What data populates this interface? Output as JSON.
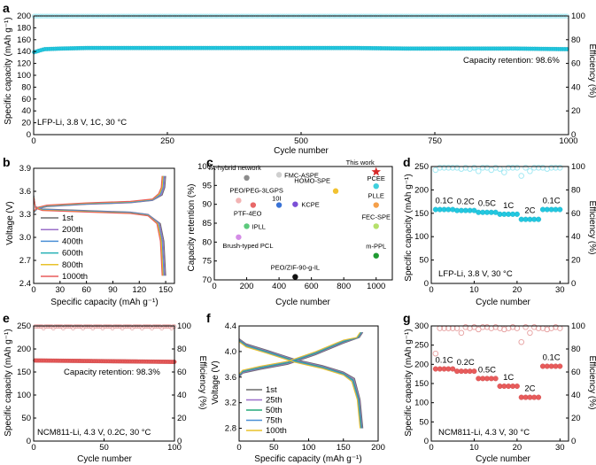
{
  "colors": {
    "cyan": "#22c8e0",
    "cyan_light": "#9de7f2",
    "red": "#e85c5c",
    "red_light": "#f2a5a5",
    "pink_ce": "#e6a0a0"
  },
  "chart_data": [
    {
      "panel": "a",
      "type": "scatter",
      "xlabel": "Cycle number",
      "ylabel": "Specific capacity (mAh g⁻¹)",
      "y2label": "Efficiency (%)",
      "xlim": [
        0,
        1000
      ],
      "ylim": [
        0,
        200
      ],
      "y2lim": [
        0,
        100
      ],
      "xticks": [
        "0",
        "250",
        "500",
        "750",
        "1000"
      ],
      "yticks": [
        "0",
        "20",
        "40",
        "60",
        "80",
        "100",
        "120",
        "140",
        "160",
        "180",
        "200"
      ],
      "y2ticks": [
        "0",
        "20",
        "40",
        "60",
        "80",
        "100"
      ],
      "annotation": "Capacity retention: 98.6%",
      "condition": "LFP-Li, 3.8 V, 1C, 30 °C",
      "series": [
        {
          "role": "capacity",
          "x": [
            1,
            20,
            50,
            100,
            200,
            300,
            400,
            500,
            600,
            700,
            800,
            900,
            1000
          ],
          "y": [
            139,
            144,
            145,
            146,
            146,
            146,
            146,
            146,
            146,
            145,
            145,
            145,
            144
          ]
        },
        {
          "role": "efficiency",
          "x": [
            1,
            1000
          ],
          "y": [
            99.9,
            99.9
          ]
        }
      ]
    },
    {
      "panel": "b",
      "type": "line",
      "xlabel": "Specific capacity (mAh g⁻¹)",
      "ylabel": "Voltage (V)",
      "xlim": [
        0,
        160
      ],
      "ylim": [
        2.4,
        3.9
      ],
      "xticks": [
        "0",
        "30",
        "60",
        "90",
        "120",
        "150"
      ],
      "yticks": [
        "2.4",
        "2.7",
        "3.0",
        "3.3",
        "3.6",
        "3.9"
      ],
      "legend": [
        "1st",
        "200th",
        "400th",
        "600th",
        "800th",
        "1000th"
      ],
      "legend_colors": [
        "#6b6b6b",
        "#9a6fc9",
        "#4a8fd6",
        "#25b0b5",
        "#e8c22a",
        "#e85c5c"
      ],
      "series": [
        {
          "name": "1st",
          "cap_max": 150
        },
        {
          "name": "200th",
          "cap_max": 149
        },
        {
          "name": "400th",
          "cap_max": 148
        },
        {
          "name": "600th",
          "cap_max": 147
        },
        {
          "name": "800th",
          "cap_max": 147
        },
        {
          "name": "1000th",
          "cap_max": 146
        }
      ]
    },
    {
      "panel": "c",
      "type": "scatter",
      "xlabel": "Cycle number",
      "ylabel": "Capacity retention (%)",
      "xlim": [
        0,
        1100
      ],
      "ylim": [
        70,
        100
      ],
      "xticks": [
        "0",
        "200",
        "400",
        "600",
        "800",
        "1000"
      ],
      "yticks": [
        "70",
        "75",
        "80",
        "85",
        "90",
        "95",
        "100"
      ],
      "points": [
        {
          "label": "TA-hybrid network",
          "x": 200,
          "y": 97,
          "color": "#8c8c8c"
        },
        {
          "label": "FMC-ASPE",
          "x": 400,
          "y": 97.8,
          "color": "#cfcfcf"
        },
        {
          "label": "HOMO-SPE",
          "x": 750,
          "y": 93.5,
          "color": "#f2c230"
        },
        {
          "label": "This work",
          "x": 1000,
          "y": 98.6,
          "color": "#d62828",
          "star": true
        },
        {
          "label": "PCEE",
          "x": 1000,
          "y": 94.8,
          "color": "#3fd0dd"
        },
        {
          "label": "PEO/PEG-3LGPS",
          "x": 150,
          "y": 91,
          "color": "#f2b3b3"
        },
        {
          "label": "PTF-4EO",
          "x": 240,
          "y": 89.8,
          "color": "#e86868"
        },
        {
          "label": "10I",
          "x": 400,
          "y": 89.8,
          "color": "#3a73d6"
        },
        {
          "label": "KCPE",
          "x": 500,
          "y": 90,
          "color": "#7b4fd6"
        },
        {
          "label": "PLLE",
          "x": 1000,
          "y": 89.8,
          "color": "#f5a04a"
        },
        {
          "label": "IPLL",
          "x": 200,
          "y": 84.2,
          "color": "#5cc97c"
        },
        {
          "label": "FEC-SPE",
          "x": 1000,
          "y": 84.2,
          "color": "#b5e06b"
        },
        {
          "label": "Brush-typed PCL",
          "x": 150,
          "y": 81.3,
          "color": "#d48ce6"
        },
        {
          "label": "m-PPL",
          "x": 1000,
          "y": 76.4,
          "color": "#1f9a32"
        },
        {
          "label": "PEO/ZIF-90-g-IL",
          "x": 500,
          "y": 70.8,
          "color": "#111111"
        }
      ]
    },
    {
      "panel": "d",
      "type": "scatter",
      "xlabel": "Cycle number",
      "ylabel": "Specific capacity (mAh g⁻¹)",
      "y2label": "Efficiency (%)",
      "xlim": [
        0,
        32
      ],
      "ylim": [
        0,
        250
      ],
      "y2lim": [
        0,
        100
      ],
      "xticks": [
        "0",
        "10",
        "20",
        "30"
      ],
      "yticks": [
        "0",
        "50",
        "100",
        "150",
        "200",
        "250"
      ],
      "y2ticks": [
        "0",
        "20",
        "40",
        "60",
        "80",
        "100"
      ],
      "rate_labels": [
        "0.1C",
        "0.2C",
        "0.5C",
        "1C",
        "2C",
        "0.1C"
      ],
      "condition": "LFP-Li, 3.8 V, 30 °C",
      "series": [
        {
          "role": "capacity",
          "rate_segments": [
            {
              "from": 1,
              "to": 5,
              "y": 158
            },
            {
              "from": 6,
              "to": 10,
              "y": 156
            },
            {
              "from": 11,
              "to": 15,
              "y": 152
            },
            {
              "from": 16,
              "to": 20,
              "y": 148
            },
            {
              "from": 21,
              "to": 25,
              "y": 137
            },
            {
              "from": 26,
              "to": 30,
              "y": 158
            }
          ]
        },
        {
          "role": "efficiency",
          "y": [
            97,
            99,
            99,
            99,
            99,
            99,
            98,
            99,
            98,
            99,
            96,
            99,
            99,
            97,
            99,
            98,
            95,
            99,
            99,
            99,
            92,
            99,
            96,
            99,
            99,
            99,
            98,
            99,
            99,
            99
          ]
        }
      ]
    },
    {
      "panel": "e",
      "type": "scatter",
      "xlabel": "Cycle number",
      "ylabel": "Specific capacity (mAh g⁻¹)",
      "y2label": "Efficiency (%)",
      "xlim": [
        0,
        100
      ],
      "ylim": [
        0,
        250
      ],
      "y2lim": [
        0,
        100
      ],
      "xticks": [
        "0",
        "50",
        "100"
      ],
      "yticks": [
        "0",
        "50",
        "100",
        "150",
        "200",
        "250"
      ],
      "y2ticks": [
        "0",
        "20",
        "40",
        "60",
        "80",
        "100"
      ],
      "annotation": "Capacity retention: 98.3%",
      "condition": "NCM811-Li, 4.3 V, 0.2C, 30 °C",
      "series": [
        {
          "role": "capacity",
          "x": [
            1,
            100
          ],
          "y": [
            175,
            172
          ]
        },
        {
          "role": "efficiency",
          "x": [
            1,
            100
          ],
          "y": [
            99.5,
            99.5
          ]
        }
      ]
    },
    {
      "panel": "f",
      "type": "line",
      "xlabel": "Specific capacity (mAh g⁻¹)",
      "ylabel": "Voltage (V)",
      "xlim": [
        0,
        200
      ],
      "ylim": [
        2.6,
        4.4
      ],
      "xticks": [
        "0",
        "50",
        "100",
        "150",
        "200"
      ],
      "yticks": [
        "2.8",
        "3.2",
        "3.6",
        "4.0",
        "4.4"
      ],
      "legend": [
        "1st",
        "25th",
        "50th",
        "75th",
        "100th"
      ],
      "legend_colors": [
        "#6b6b6b",
        "#9a6fc9",
        "#25a87a",
        "#4a8fd6",
        "#e8c22a"
      ],
      "series": [
        {
          "name": "1st",
          "cap_max": 178
        },
        {
          "name": "25th",
          "cap_max": 177
        },
        {
          "name": "50th",
          "cap_max": 176
        },
        {
          "name": "75th",
          "cap_max": 175
        },
        {
          "name": "100th",
          "cap_max": 174
        }
      ]
    },
    {
      "panel": "g",
      "type": "scatter",
      "xlabel": "Cycle number",
      "ylabel": "Specific capacity (mAh g⁻¹)",
      "y2label": "Efficiency (%)",
      "xlim": [
        0,
        32
      ],
      "ylim": [
        0,
        300
      ],
      "y2lim": [
        0,
        100
      ],
      "xticks": [
        "0",
        "10",
        "20",
        "30"
      ],
      "yticks": [
        "0",
        "50",
        "100",
        "150",
        "200",
        "250",
        "300"
      ],
      "y2ticks": [
        "0",
        "20",
        "40",
        "60",
        "80",
        "100"
      ],
      "rate_labels": [
        "0.1C",
        "0.2C",
        "0.5C",
        "1C",
        "2C",
        "0.1C"
      ],
      "condition": "NCM811-Li, 4.3 V, 30 °C",
      "series": [
        {
          "role": "capacity",
          "rate_segments": [
            {
              "from": 1,
              "to": 5,
              "y": 188
            },
            {
              "from": 6,
              "to": 10,
              "y": 182
            },
            {
              "from": 11,
              "to": 15,
              "y": 163
            },
            {
              "from": 16,
              "to": 20,
              "y": 143
            },
            {
              "from": 21,
              "to": 25,
              "y": 114
            },
            {
              "from": 26,
              "to": 30,
              "y": 195
            }
          ]
        },
        {
          "role": "efficiency",
          "y": [
            76,
            98,
            98,
            98,
            98,
            98,
            94,
            99,
            98,
            99,
            97,
            99,
            99,
            98,
            99,
            98,
            97,
            98,
            99,
            98,
            86,
            99,
            94,
            99,
            98,
            98,
            97,
            98,
            99,
            98
          ]
        }
      ]
    }
  ]
}
